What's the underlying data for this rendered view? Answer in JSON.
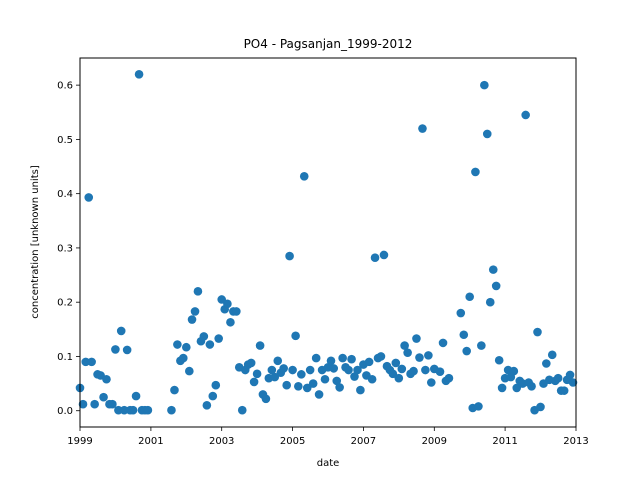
{
  "chart_data": {
    "type": "scatter",
    "title": "PO4 - Pagsanjan_1999-2012",
    "xlabel": "date",
    "ylabel": "concentration [unknown units]",
    "xlim": [
      "1999-01-01",
      "2013-01-01"
    ],
    "ylim": [
      -0.03,
      0.65
    ],
    "x_ticks": [
      "1999",
      "2001",
      "2003",
      "2005",
      "2007",
      "2009",
      "2011",
      "2013"
    ],
    "y_ticks": [
      "0.0",
      "0.1",
      "0.2",
      "0.3",
      "0.4",
      "0.5",
      "0.6"
    ],
    "grid": false,
    "marker_color": "#1f77b4",
    "points": [
      [
        "1999-01-01",
        0.042
      ],
      [
        "1999-02-01",
        0.012
      ],
      [
        "1999-03-01",
        0.09
      ],
      [
        "1999-04-01",
        0.393
      ],
      [
        "1999-05-01",
        0.09
      ],
      [
        "1999-06-01",
        0.012
      ],
      [
        "1999-07-01",
        0.067
      ],
      [
        "1999-08-01",
        0.065
      ],
      [
        "1999-09-01",
        0.025
      ],
      [
        "1999-10-01",
        0.058
      ],
      [
        "1999-11-01",
        0.012
      ],
      [
        "1999-12-01",
        0.012
      ],
      [
        "2000-01-01",
        0.113
      ],
      [
        "2000-02-01",
        0.001
      ],
      [
        "2000-03-01",
        0.147
      ],
      [
        "2000-04-01",
        0.001
      ],
      [
        "2000-05-01",
        0.112
      ],
      [
        "2000-06-01",
        0.001
      ],
      [
        "2000-07-01",
        0.001
      ],
      [
        "2000-08-01",
        0.027
      ],
      [
        "2000-09-01",
        0.62
      ],
      [
        "2000-10-01",
        0.001
      ],
      [
        "2000-11-01",
        0.001
      ],
      [
        "2000-12-01",
        0.001
      ],
      [
        "2001-08-01",
        0.001
      ],
      [
        "2001-09-01",
        0.038
      ],
      [
        "2001-10-01",
        0.122
      ],
      [
        "2001-11-01",
        0.092
      ],
      [
        "2001-12-01",
        0.097
      ],
      [
        "2002-01-01",
        0.117
      ],
      [
        "2002-02-01",
        0.073
      ],
      [
        "2002-03-01",
        0.168
      ],
      [
        "2002-04-01",
        0.183
      ],
      [
        "2002-05-01",
        0.22
      ],
      [
        "2002-06-01",
        0.128
      ],
      [
        "2002-07-01",
        0.137
      ],
      [
        "2002-08-01",
        0.01
      ],
      [
        "2002-09-01",
        0.122
      ],
      [
        "2002-10-01",
        0.027
      ],
      [
        "2002-11-01",
        0.047
      ],
      [
        "2002-12-01",
        0.133
      ],
      [
        "2003-01-01",
        0.205
      ],
      [
        "2003-02-01",
        0.187
      ],
      [
        "2003-03-01",
        0.197
      ],
      [
        "2003-04-01",
        0.163
      ],
      [
        "2003-05-01",
        0.183
      ],
      [
        "2003-06-01",
        0.183
      ],
      [
        "2003-07-01",
        0.08
      ],
      [
        "2003-08-01",
        0.001
      ],
      [
        "2003-09-01",
        0.075
      ],
      [
        "2003-10-01",
        0.085
      ],
      [
        "2003-11-01",
        0.088
      ],
      [
        "2003-12-01",
        0.053
      ],
      [
        "2004-01-01",
        0.068
      ],
      [
        "2004-02-01",
        0.12
      ],
      [
        "2004-03-01",
        0.03
      ],
      [
        "2004-04-01",
        0.022
      ],
      [
        "2004-05-01",
        0.06
      ],
      [
        "2004-06-01",
        0.075
      ],
      [
        "2004-07-01",
        0.062
      ],
      [
        "2004-08-01",
        0.092
      ],
      [
        "2004-09-01",
        0.07
      ],
      [
        "2004-10-01",
        0.078
      ],
      [
        "2004-11-01",
        0.047
      ],
      [
        "2004-12-01",
        0.285
      ],
      [
        "2005-01-01",
        0.075
      ],
      [
        "2005-02-01",
        0.138
      ],
      [
        "2005-03-01",
        0.045
      ],
      [
        "2005-04-01",
        0.067
      ],
      [
        "2005-05-01",
        0.432
      ],
      [
        "2005-06-01",
        0.042
      ],
      [
        "2005-07-01",
        0.075
      ],
      [
        "2005-08-01",
        0.05
      ],
      [
        "2005-09-01",
        0.097
      ],
      [
        "2005-10-01",
        0.03
      ],
      [
        "2005-11-01",
        0.075
      ],
      [
        "2005-12-01",
        0.058
      ],
      [
        "2006-01-01",
        0.08
      ],
      [
        "2006-02-01",
        0.092
      ],
      [
        "2006-03-01",
        0.078
      ],
      [
        "2006-04-01",
        0.055
      ],
      [
        "2006-05-01",
        0.043
      ],
      [
        "2006-06-01",
        0.097
      ],
      [
        "2006-07-01",
        0.08
      ],
      [
        "2006-08-01",
        0.075
      ],
      [
        "2006-09-01",
        0.095
      ],
      [
        "2006-10-01",
        0.063
      ],
      [
        "2006-11-01",
        0.075
      ],
      [
        "2006-12-01",
        0.038
      ],
      [
        "2007-01-01",
        0.085
      ],
      [
        "2007-02-01",
        0.065
      ],
      [
        "2007-03-01",
        0.09
      ],
      [
        "2007-04-01",
        0.058
      ],
      [
        "2007-05-01",
        0.282
      ],
      [
        "2007-06-01",
        0.097
      ],
      [
        "2007-07-01",
        0.1
      ],
      [
        "2007-08-01",
        0.287
      ],
      [
        "2007-09-01",
        0.082
      ],
      [
        "2007-10-01",
        0.075
      ],
      [
        "2007-11-01",
        0.068
      ],
      [
        "2007-12-01",
        0.088
      ],
      [
        "2008-01-01",
        0.06
      ],
      [
        "2008-02-01",
        0.077
      ],
      [
        "2008-03-01",
        0.12
      ],
      [
        "2008-04-01",
        0.107
      ],
      [
        "2008-05-01",
        0.068
      ],
      [
        "2008-06-01",
        0.073
      ],
      [
        "2008-07-01",
        0.133
      ],
      [
        "2008-08-01",
        0.098
      ],
      [
        "2008-09-01",
        0.52
      ],
      [
        "2008-10-01",
        0.075
      ],
      [
        "2008-11-01",
        0.102
      ],
      [
        "2008-12-01",
        0.052
      ],
      [
        "2009-01-01",
        0.077
      ],
      [
        "2009-03-01",
        0.072
      ],
      [
        "2009-04-01",
        0.125
      ],
      [
        "2009-05-01",
        0.055
      ],
      [
        "2009-06-01",
        0.06
      ],
      [
        "2009-10-01",
        0.18
      ],
      [
        "2009-11-01",
        0.14
      ],
      [
        "2009-12-01",
        0.11
      ],
      [
        "2010-01-01",
        0.21
      ],
      [
        "2010-02-01",
        0.005
      ],
      [
        "2010-03-01",
        0.44
      ],
      [
        "2010-04-01",
        0.008
      ],
      [
        "2010-05-01",
        0.12
      ],
      [
        "2010-06-01",
        0.6
      ],
      [
        "2010-07-01",
        0.51
      ],
      [
        "2010-08-01",
        0.2
      ],
      [
        "2010-09-01",
        0.26
      ],
      [
        "2010-10-01",
        0.23
      ],
      [
        "2010-11-01",
        0.093
      ],
      [
        "2010-12-01",
        0.042
      ],
      [
        "2011-01-01",
        0.06
      ],
      [
        "2011-02-01",
        0.075
      ],
      [
        "2011-03-01",
        0.062
      ],
      [
        "2011-04-01",
        0.073
      ],
      [
        "2011-05-01",
        0.042
      ],
      [
        "2011-06-01",
        0.055
      ],
      [
        "2011-07-01",
        0.05
      ],
      [
        "2011-08-01",
        0.545
      ],
      [
        "2011-09-01",
        0.052
      ],
      [
        "2011-10-01",
        0.045
      ],
      [
        "2011-11-01",
        0.001
      ],
      [
        "2011-12-01",
        0.145
      ],
      [
        "2012-01-01",
        0.007
      ],
      [
        "2012-02-01",
        0.05
      ],
      [
        "2012-03-01",
        0.087
      ],
      [
        "2012-04-01",
        0.057
      ],
      [
        "2012-05-01",
        0.103
      ],
      [
        "2012-06-01",
        0.055
      ],
      [
        "2012-07-01",
        0.06
      ],
      [
        "2012-08-01",
        0.037
      ],
      [
        "2012-09-01",
        0.037
      ],
      [
        "2012-10-01",
        0.057
      ],
      [
        "2012-11-01",
        0.066
      ],
      [
        "2012-12-01",
        0.052
      ]
    ]
  }
}
